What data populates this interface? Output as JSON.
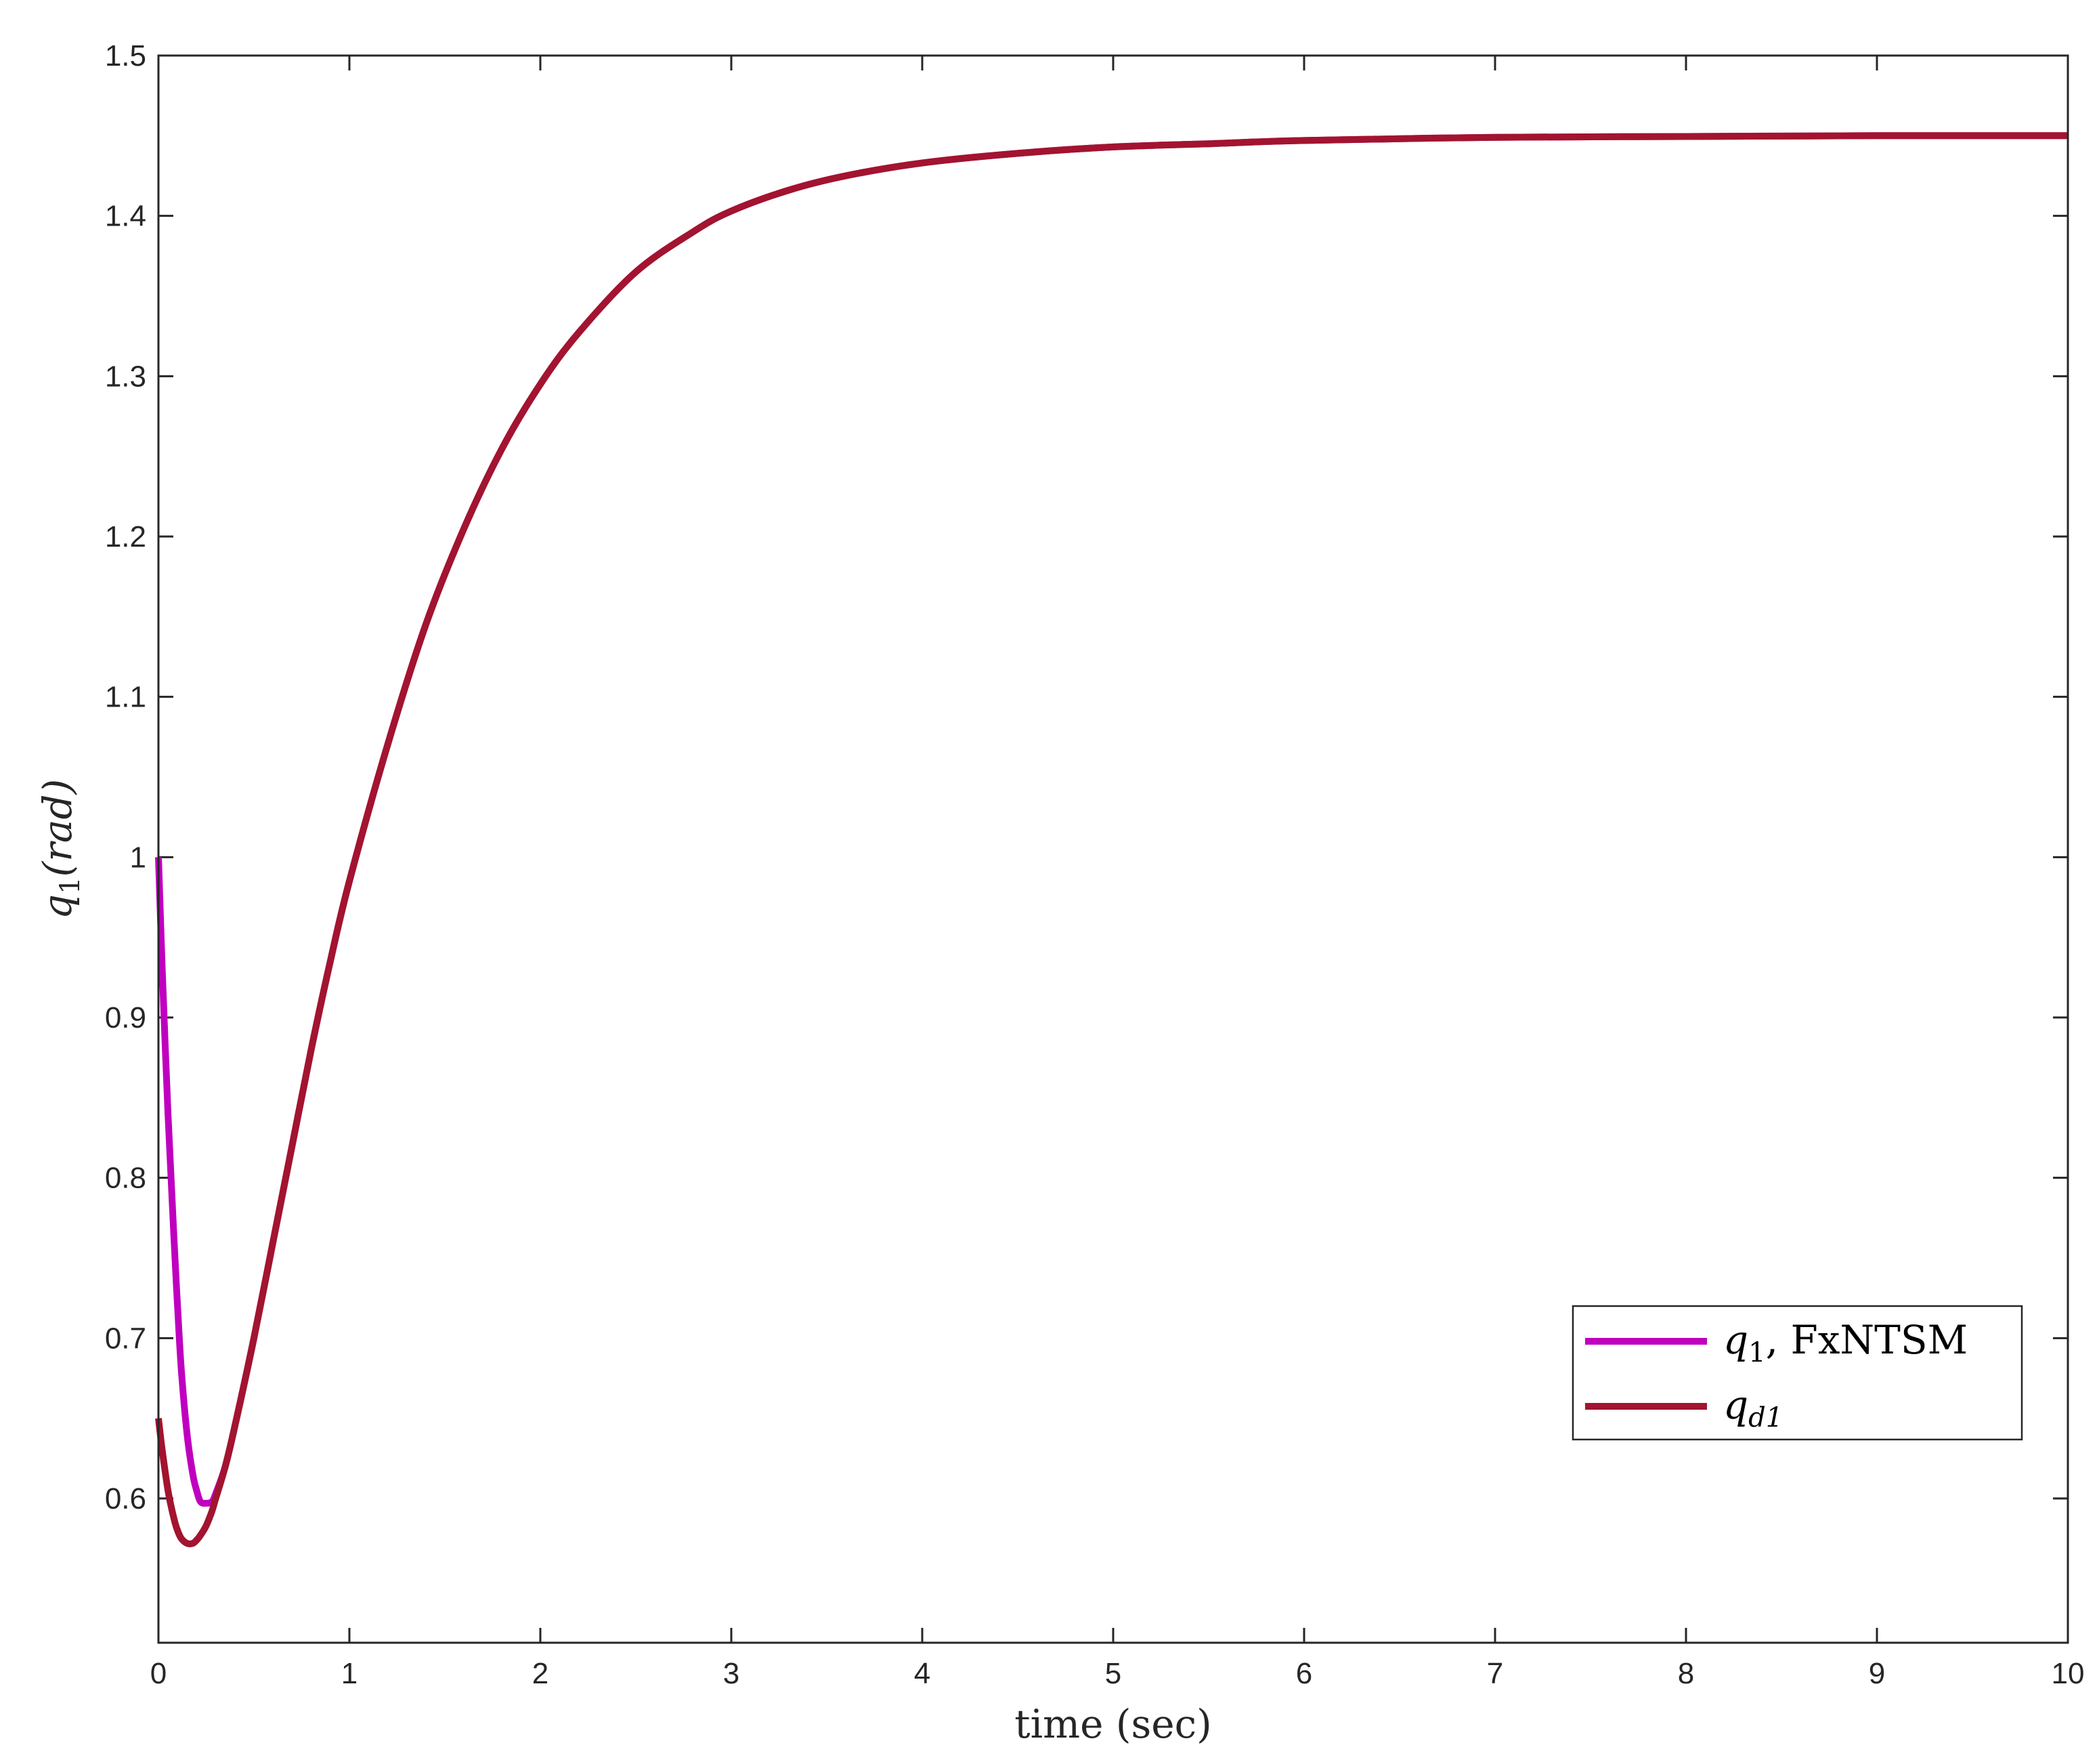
{
  "chart_data": {
    "type": "line",
    "xlabel": "time (sec)",
    "ylabel": "q1(rad)",
    "xlim": [
      0,
      10
    ],
    "ylim": [
      0.51,
      1.5
    ],
    "grid": false,
    "legend_position": "bottom-right",
    "x_ticks": [
      0,
      1,
      2,
      3,
      4,
      5,
      6,
      7,
      8,
      9,
      10
    ],
    "x_tick_labels": [
      "0",
      "1",
      "2",
      "3",
      "4",
      "5",
      "6",
      "7",
      "8",
      "9",
      "10"
    ],
    "y_ticks": [
      0.6,
      0.7,
      0.8,
      0.9,
      1.0,
      1.1,
      1.2,
      1.3,
      1.4,
      1.5
    ],
    "y_tick_labels": [
      "0.6",
      "0.7",
      "0.8",
      "0.9",
      "1",
      "1.1",
      "1.2",
      "1.3",
      "1.4",
      "1.5"
    ],
    "series": [
      {
        "name": "q1, FxNTSM",
        "color": "#BF00BF",
        "x": [
          0,
          0.02,
          0.05,
          0.08,
          0.1,
          0.12,
          0.15,
          0.18,
          0.2,
          0.22,
          0.25,
          0.28,
          0.3,
          0.35,
          0.4,
          0.5,
          0.6,
          0.7,
          0.8,
          0.9,
          1.0,
          1.2,
          1.4,
          1.6,
          1.8,
          2.0,
          2.2,
          2.5,
          2.8,
          3.0,
          3.3,
          3.6,
          4.0,
          4.5,
          5.0,
          5.5,
          6.0,
          7.0,
          8.0,
          9.0,
          10.0
        ],
        "y": [
          1.0,
          0.93,
          0.84,
          0.765,
          0.72,
          0.68,
          0.64,
          0.615,
          0.605,
          0.598,
          0.597,
          0.598,
          0.603,
          0.62,
          0.645,
          0.7,
          0.76,
          0.82,
          0.88,
          0.935,
          0.985,
          1.07,
          1.145,
          1.205,
          1.255,
          1.295,
          1.327,
          1.365,
          1.39,
          1.403,
          1.416,
          1.425,
          1.433,
          1.439,
          1.443,
          1.445,
          1.447,
          1.449,
          1.4495,
          1.45,
          1.45
        ]
      },
      {
        "name": "qd1",
        "color": "#A2142F",
        "x": [
          0,
          0.02,
          0.05,
          0.08,
          0.1,
          0.12,
          0.15,
          0.18,
          0.2,
          0.22,
          0.25,
          0.28,
          0.3,
          0.35,
          0.4,
          0.5,
          0.6,
          0.7,
          0.8,
          0.9,
          1.0,
          1.2,
          1.4,
          1.6,
          1.8,
          2.0,
          2.2,
          2.5,
          2.8,
          3.0,
          3.3,
          3.6,
          4.0,
          4.5,
          5.0,
          5.5,
          6.0,
          7.0,
          8.0,
          9.0,
          10.0
        ],
        "y": [
          0.65,
          0.63,
          0.605,
          0.588,
          0.58,
          0.575,
          0.572,
          0.572,
          0.574,
          0.577,
          0.583,
          0.592,
          0.6,
          0.62,
          0.645,
          0.7,
          0.76,
          0.82,
          0.88,
          0.935,
          0.985,
          1.07,
          1.145,
          1.205,
          1.255,
          1.295,
          1.327,
          1.365,
          1.39,
          1.403,
          1.416,
          1.425,
          1.433,
          1.439,
          1.443,
          1.445,
          1.447,
          1.449,
          1.4495,
          1.45,
          1.45
        ]
      }
    ]
  },
  "legend": {
    "items": [
      {
        "label_main": "q",
        "label_sub": "1",
        "label_rest": ", FxNTSM",
        "color": "#BF00BF"
      },
      {
        "label_main": "q",
        "label_sub": "d1",
        "label_rest": "",
        "color": "#A2142F"
      }
    ]
  },
  "axes": {
    "xlabel": "time (sec)",
    "ylabel_main": "q",
    "ylabel_sub": "1",
    "ylabel_rest": "(rad)"
  },
  "colors": {
    "axis": "#262626",
    "background": "#ffffff"
  }
}
